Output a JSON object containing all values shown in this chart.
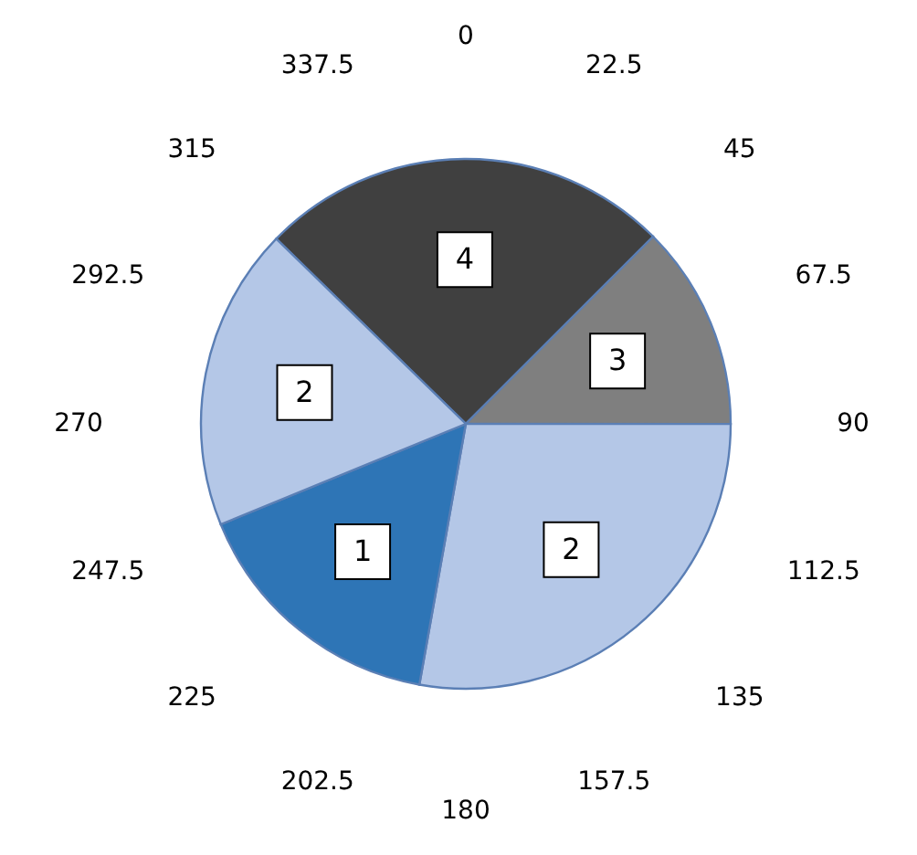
{
  "chart_data": {
    "type": "pie",
    "categories": [
      "4",
      "3",
      "2",
      "1",
      "2"
    ],
    "values": [
      25.2,
      12.5,
      27.8,
      16.0,
      18.5
    ],
    "colors": [
      "#404040",
      "#7f7f7f",
      "#b4c7e7",
      "#2e75b6",
      "#b4c7e7"
    ],
    "annotations": [
      "0",
      "22.5",
      "45",
      "67.5",
      "90",
      "112.5",
      "135",
      "157.5",
      "180",
      "202.5",
      "225",
      "247.5",
      "270",
      "292.5",
      "315",
      "337.5"
    ]
  }
}
